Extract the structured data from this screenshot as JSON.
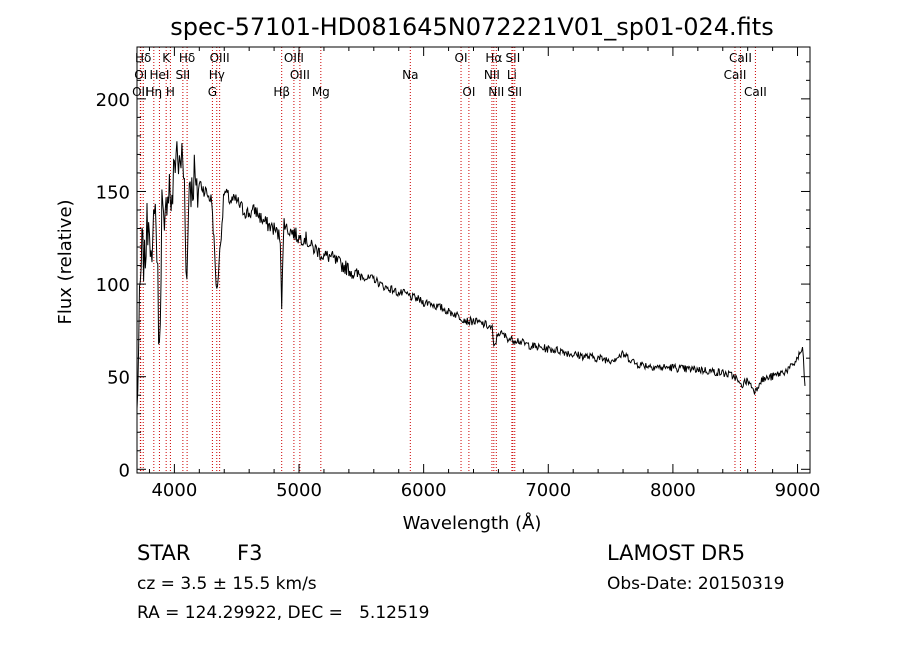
{
  "chart_data": {
    "type": "line",
    "title": "spec-57101-HD081645N072221V01_sp01-024.fits",
    "xlabel": "Wavelength (Å)",
    "ylabel": "Flux (relative)",
    "xlim": [
      3700,
      9100
    ],
    "ylim": [
      -2,
      228
    ],
    "x_ticks": [
      4000,
      5000,
      6000,
      7000,
      8000,
      9000
    ],
    "y_ticks": [
      0,
      50,
      100,
      150,
      200
    ],
    "grid": false,
    "series": [
      {
        "x": [
          3700,
          3720,
          3740,
          3760,
          3780,
          3800,
          3820,
          3840,
          3860,
          3880,
          3900,
          3920,
          3940,
          3960,
          3980,
          4000,
          4020,
          4040,
          4060,
          4080,
          4100,
          4120,
          4140,
          4160,
          4180,
          4200,
          4250,
          4300,
          4340,
          4400,
          4450,
          4500,
          4550,
          4600,
          4650,
          4700,
          4750,
          4800,
          4850,
          4861,
          4880,
          4900,
          4950,
          5000,
          5050,
          5100,
          5150,
          5200,
          5250,
          5300,
          5350,
          5400,
          5450,
          5500,
          5550,
          5600,
          5650,
          5700,
          5750,
          5800,
          5850,
          5900,
          5950,
          6000,
          6050,
          6100,
          6150,
          6200,
          6250,
          6300,
          6350,
          6400,
          6450,
          6500,
          6550,
          6563,
          6600,
          6650,
          6700,
          6750,
          6800,
          6900,
          7000,
          7100,
          7200,
          7300,
          7400,
          7500,
          7600,
          7650,
          7700,
          7800,
          7900,
          8000,
          8100,
          8200,
          8300,
          8400,
          8500,
          8540,
          8600,
          8662,
          8700,
          8800,
          8900,
          8950,
          9000,
          9040,
          9060
        ],
        "y": [
          30,
          85,
          120,
          110,
          130,
          140,
          100,
          150,
          120,
          60,
          145,
          120,
          150,
          155,
          140,
          165,
          175,
          160,
          170,
          155,
          100,
          160,
          150,
          160,
          145,
          155,
          150,
          145,
          95,
          150,
          145,
          145,
          140,
          138,
          140,
          135,
          132,
          130,
          125,
          90,
          135,
          130,
          128,
          125,
          125,
          120,
          118,
          115,
          115,
          112,
          110,
          108,
          105,
          105,
          103,
          103,
          100,
          98,
          97,
          95,
          95,
          93,
          92,
          90,
          90,
          88,
          87,
          85,
          84,
          82,
          80,
          80,
          79,
          78,
          76,
          65,
          74,
          72,
          70,
          70,
          68,
          66,
          65,
          64,
          62,
          61,
          60,
          59,
          62,
          60,
          57,
          56,
          55,
          55,
          54,
          54,
          53,
          52,
          50,
          45,
          48,
          42,
          48,
          50,
          53,
          55,
          60,
          65,
          45
        ]
      }
    ],
    "spectral_lines": [
      {
        "label": "Hδ",
        "wave": 3750,
        "row": 1
      },
      {
        "label": "OI",
        "wave": 3730,
        "row": 2
      },
      {
        "label": "OII",
        "wave": 3727,
        "row": 3
      },
      {
        "label": "K",
        "wave": 3934,
        "row": 1
      },
      {
        "label": "HeI",
        "wave": 3880,
        "row": 2
      },
      {
        "label": "Hη",
        "wave": 3835,
        "row": 3
      },
      {
        "label": "H",
        "wave": 3968,
        "row": 3
      },
      {
        "label": "Hδ",
        "wave": 4102,
        "row": 1
      },
      {
        "label": "SII",
        "wave": 4068,
        "row": 2
      },
      {
        "label": "OIII",
        "wave": 4363,
        "row": 1
      },
      {
        "label": "Hγ",
        "wave": 4340,
        "row": 2
      },
      {
        "label": "G",
        "wave": 4305,
        "row": 3
      },
      {
        "label": "OIII",
        "wave": 4959,
        "row": 1
      },
      {
        "label": "OIII",
        "wave": 5007,
        "row": 2
      },
      {
        "label": "Hβ",
        "wave": 4861,
        "row": 3
      },
      {
        "label": "Mg",
        "wave": 5175,
        "row": 3
      },
      {
        "label": "Na",
        "wave": 5893,
        "row": 2
      },
      {
        "label": "OI",
        "wave": 6300,
        "row": 1
      },
      {
        "label": "OI",
        "wave": 6363,
        "row": 3
      },
      {
        "label": "Hα",
        "wave": 6563,
        "row": 1
      },
      {
        "label": "SII",
        "wave": 6716,
        "row": 1
      },
      {
        "label": "NII",
        "wave": 6548,
        "row": 2
      },
      {
        "label": "Li",
        "wave": 6708,
        "row": 2
      },
      {
        "label": "NII",
        "wave": 6583,
        "row": 3
      },
      {
        "label": "SII",
        "wave": 6731,
        "row": 3
      },
      {
        "label": "CaII",
        "wave": 8542,
        "row": 1
      },
      {
        "label": "CaII",
        "wave": 8498,
        "row": 2
      },
      {
        "label": "CaII",
        "wave": 8662,
        "row": 3
      }
    ]
  },
  "info": {
    "object_class": "STAR",
    "subclass": "F3",
    "survey": "LAMOST DR5",
    "cz": "cz = 3.5 ± 15.5 km/s",
    "obs_date": "Obs-Date: 20150319",
    "coords": "RA = 124.29922, DEC =   5.12519"
  }
}
